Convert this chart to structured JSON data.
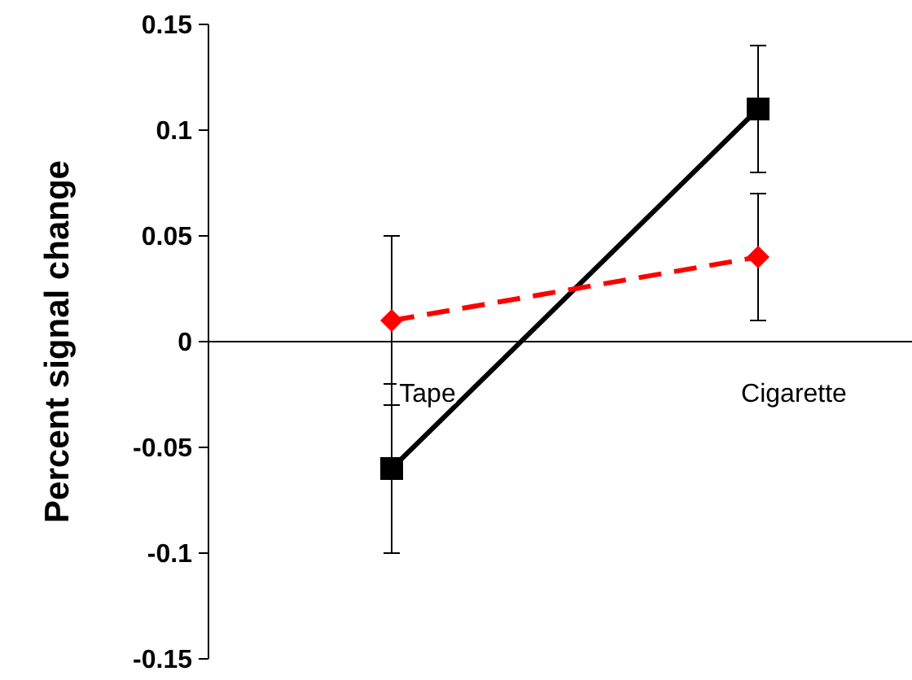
{
  "chart_data": {
    "type": "line",
    "ylabel": "Percent signal change",
    "categories": [
      "Tape",
      "Cigarette"
    ],
    "series": [
      {
        "color": "#000000",
        "values": [
          -0.06,
          0.11
        ],
        "errors": [
          0.04,
          0.03
        ],
        "marker": "square",
        "line_style": "solid"
      },
      {
        "color": "#ff0000",
        "values": [
          0.01,
          0.04
        ],
        "errors": [
          0.04,
          0.03
        ],
        "marker": "diamond",
        "line_style": "dashed"
      }
    ],
    "ylim": [
      -0.15,
      0.15
    ],
    "yticks": [
      -0.15,
      -0.1,
      -0.05,
      0,
      0.05,
      0.1,
      0.15
    ],
    "grid": false
  }
}
